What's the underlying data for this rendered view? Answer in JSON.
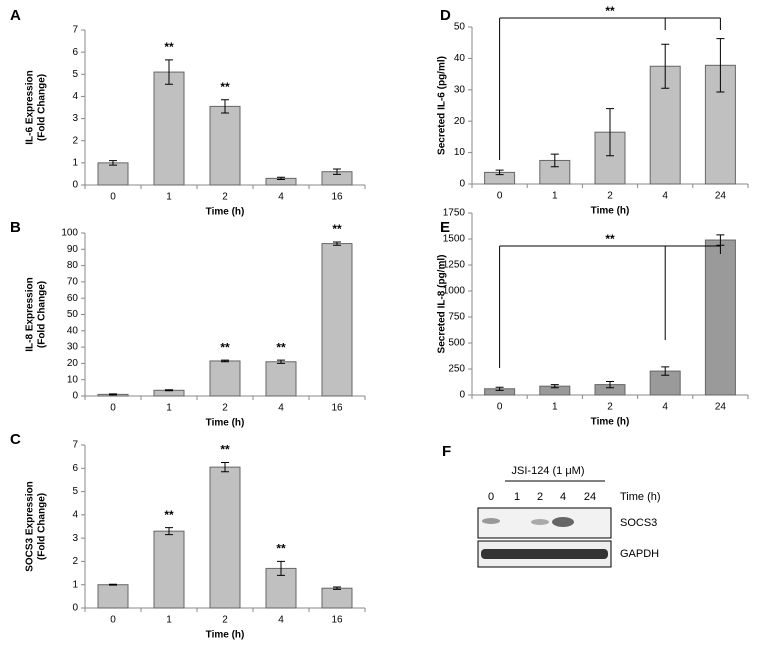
{
  "chart_data": [
    {
      "type": "bar",
      "panel": "A",
      "y_label": [
        "IL-6 Expression",
        "(Fold Change)"
      ],
      "x_label": "Time (h)",
      "categories": [
        "0",
        "1",
        "2",
        "4",
        "16"
      ],
      "values": [
        1.0,
        5.1,
        3.55,
        0.3,
        0.6
      ],
      "errors": [
        0.1,
        0.55,
        0.3,
        0.05,
        0.12
      ],
      "significance": [
        null,
        "**",
        "**",
        null,
        null
      ],
      "color": "#c0c0c0",
      "ylim": [
        0,
        7
      ],
      "yticks": [
        0,
        1,
        2,
        3,
        4,
        5,
        6,
        7
      ]
    },
    {
      "type": "bar",
      "panel": "B",
      "y_label": [
        "IL-8 Expression",
        "(Fold Change)"
      ],
      "x_label": "Time (h)",
      "categories": [
        "0",
        "1",
        "2",
        "4",
        "16"
      ],
      "values": [
        1,
        3.5,
        21.5,
        21,
        93.5
      ],
      "errors": [
        0.3,
        0.3,
        0.5,
        1,
        1
      ],
      "significance": [
        null,
        null,
        "**",
        "**",
        "**"
      ],
      "color": "#c0c0c0",
      "ylim": [
        0,
        100
      ],
      "yticks": [
        0,
        10,
        20,
        30,
        40,
        50,
        60,
        70,
        80,
        90,
        100
      ]
    },
    {
      "type": "bar",
      "panel": "C",
      "y_label": [
        "SOCS3 Expression",
        "(Fold Change)"
      ],
      "x_label": "Time (h)",
      "categories": [
        "0",
        "1",
        "2",
        "4",
        "16"
      ],
      "values": [
        1.0,
        3.3,
        6.05,
        1.7,
        0.85
      ],
      "errors": [
        0.02,
        0.15,
        0.2,
        0.3,
        0.05
      ],
      "significance": [
        null,
        "**",
        "**",
        "**",
        null
      ],
      "color": "#c0c0c0",
      "ylim": [
        0,
        7
      ],
      "yticks": [
        0,
        1,
        2,
        3,
        4,
        5,
        6,
        7
      ]
    },
    {
      "type": "bar",
      "panel": "D",
      "y_label": [
        "Secreted IL-6 (pg/ml)"
      ],
      "x_label": "Time (h)",
      "categories": [
        "0",
        "1",
        "2",
        "4",
        "24"
      ],
      "values": [
        3.7,
        7.5,
        16.5,
        37.5,
        37.8
      ],
      "errors": [
        0.7,
        2,
        7.5,
        7,
        8.5
      ],
      "bracket_label": "**",
      "color": "#c0c0c0",
      "ylim": [
        0,
        50
      ],
      "yticks": [
        0,
        10,
        20,
        30,
        40,
        50
      ]
    },
    {
      "type": "bar",
      "panel": "E",
      "y_label": [
        "Secreted IL-8 (pg/ml)"
      ],
      "x_label": "Time (h)",
      "categories": [
        "0",
        "1",
        "2",
        "4",
        "24"
      ],
      "values": [
        60,
        85,
        100,
        230,
        1490
      ],
      "errors": [
        15,
        15,
        30,
        40,
        50
      ],
      "bracket_label": "**",
      "color": "#9a9a9a",
      "ylim": [
        0,
        1750
      ],
      "yticks": [
        0,
        250,
        500,
        750,
        1000,
        1250,
        1500,
        1750
      ]
    }
  ],
  "blot": {
    "panel": "F",
    "treatment": "JSI-124 (1 μM)",
    "lanes": [
      "0",
      "1",
      "2",
      "4",
      "24"
    ],
    "lane_unit": "Time (h)",
    "rows": [
      "SOCS3",
      "GAPDH"
    ]
  }
}
